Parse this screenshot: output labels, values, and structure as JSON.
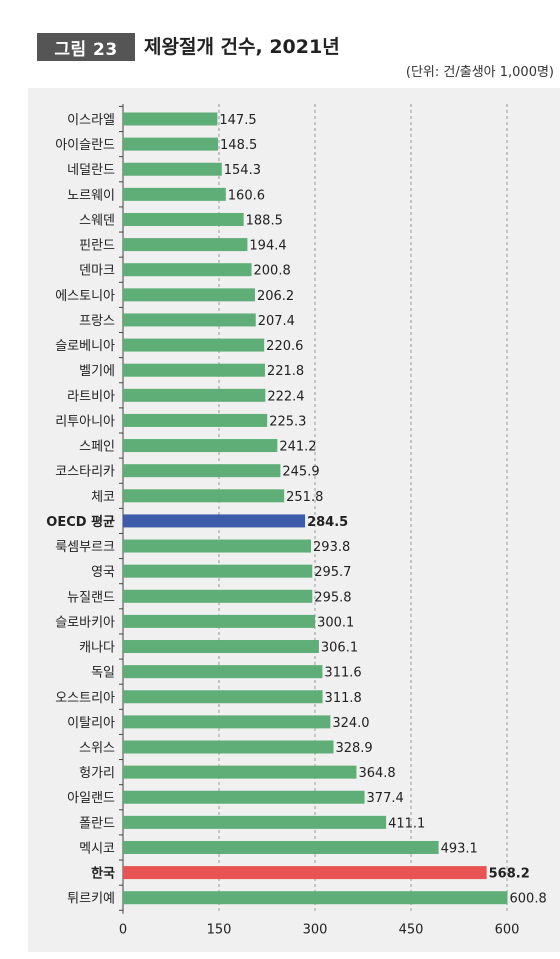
{
  "header": {
    "figure_label": "그림 23",
    "title": "제왕절개 건수, 2021년",
    "unit": "(단위: 건/출생아 1,000명)"
  },
  "colors": {
    "default_bar": "#5fae78",
    "oecd_bar": "#3d5ba9",
    "highlight_bar": "#e85454",
    "oecd_text": "#3d5ba9",
    "highlight_text": "#e04040"
  },
  "chart_data": {
    "type": "bar",
    "orientation": "horizontal",
    "title": "제왕절개 건수, 2021년",
    "unit": "(단위: 건/출생아 1,000명)",
    "xlim": [
      0,
      600
    ],
    "xticks": [
      0,
      150,
      300,
      450,
      600
    ],
    "grid": "vertical dashed",
    "categories": [
      "이스라엘",
      "아이슬란드",
      "네덜란드",
      "노르웨이",
      "스웨덴",
      "핀란드",
      "덴마크",
      "에스토니아",
      "프랑스",
      "슬로베니아",
      "벨기에",
      "라트비아",
      "리투아니아",
      "스페인",
      "코스타리카",
      "체코",
      "OECD 평균",
      "룩셈부르크",
      "영국",
      "뉴질랜드",
      "슬로바키아",
      "캐나다",
      "독일",
      "오스트리아",
      "이탈리아",
      "스위스",
      "헝가리",
      "아일랜드",
      "폴란드",
      "멕시코",
      "한국",
      "튀르키예"
    ],
    "values": [
      147.5,
      148.5,
      154.3,
      160.6,
      188.5,
      194.4,
      200.8,
      206.2,
      207.4,
      220.6,
      221.8,
      222.4,
      225.3,
      241.2,
      245.9,
      251.8,
      284.5,
      293.8,
      295.7,
      295.8,
      300.1,
      306.1,
      311.6,
      311.8,
      324.0,
      328.9,
      364.8,
      377.4,
      411.1,
      493.1,
      568.2,
      600.8
    ],
    "value_labels": [
      "147.5",
      "148.5",
      "154.3",
      "160.6",
      "188.5",
      "194.4",
      "200.8",
      "206.2",
      "207.4",
      "220.6",
      "221.8",
      "222.4",
      "225.3",
      "241.2",
      "245.9",
      "251.8",
      "284.5",
      "293.8",
      "295.7",
      "295.8",
      "300.1",
      "306.1",
      "311.6",
      "311.8",
      "324.0",
      "328.9",
      "364.8",
      "377.4",
      "411.1",
      "493.1",
      "568.2",
      "600.8"
    ],
    "highlights": {
      "OECD 평균": "oecd",
      "한국": "highlight"
    }
  }
}
